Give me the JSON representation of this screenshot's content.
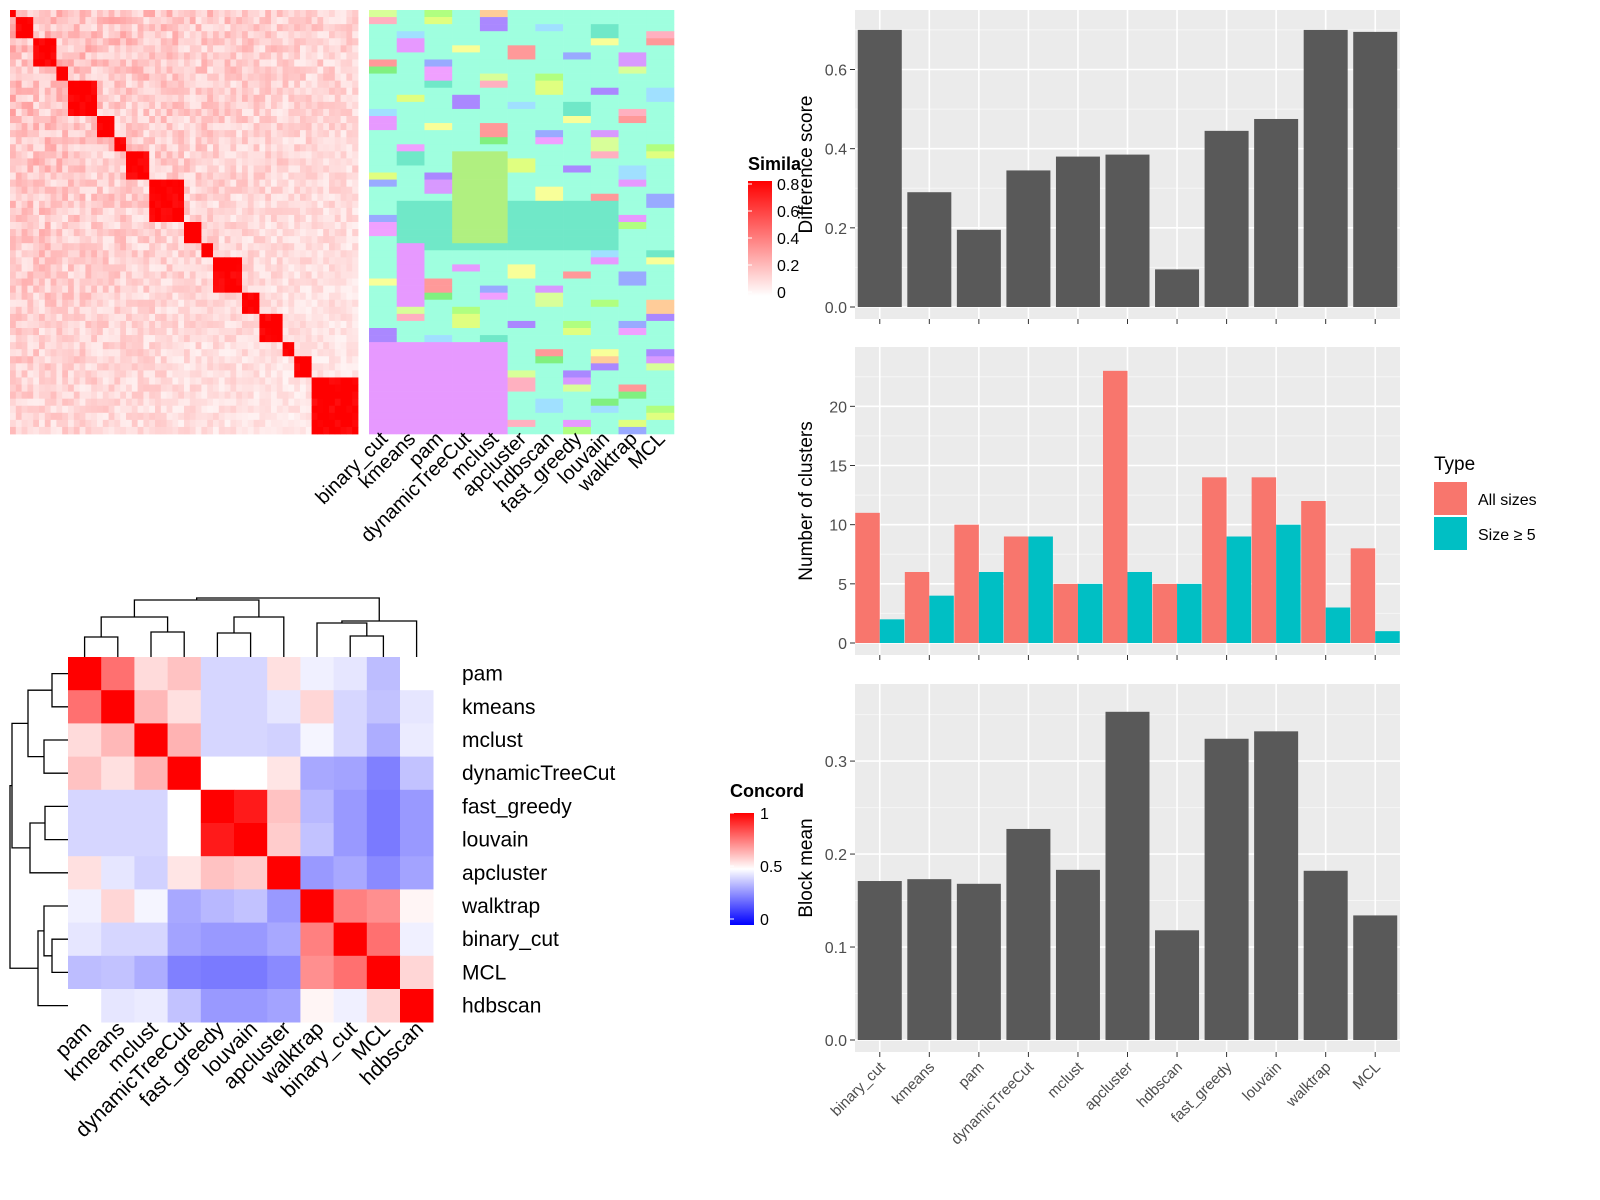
{
  "colors": {
    "panel_bg": "#ebebeb",
    "bar_dark": "#595959",
    "all_sizes": "#f8766d",
    "size5": "#00bfc4",
    "heat_low": "#0000ff",
    "heat_mid": "#ffffff",
    "heat_high": "#ff0000"
  },
  "similarity_legend": {
    "title": "Simila",
    "ticks": [
      "0.8",
      "0.6",
      "0.4",
      "0.2",
      "0"
    ]
  },
  "concordance_legend": {
    "title": "Concord",
    "ticks": [
      "1",
      "0.5",
      "0"
    ]
  },
  "cluster_map_labels": [
    "binary_cut",
    "kmeans",
    "pam",
    "dynamicTreeCut",
    "mclust",
    "apcluster",
    "hdbscan",
    "fast_greedy",
    "louvain",
    "walktrap",
    "MCL"
  ],
  "chart_data": [
    {
      "type": "heatmap",
      "name": "similarity",
      "size": 60,
      "color_range": [
        0,
        0.8
      ],
      "diagonal_value": 0.9
    },
    {
      "type": "heatmap",
      "name": "concordance",
      "rows": [
        "pam",
        "kmeans",
        "mclust",
        "dynamicTreeCut",
        "fast_greedy",
        "louvain",
        "apcluster",
        "walktrap",
        "binary_cut",
        "MCL",
        "hdbscan"
      ],
      "columns": [
        "pam",
        "kmeans",
        "mclust",
        "dynamicTreeCut",
        "fast_greedy",
        "louvain",
        "apcluster",
        "walktrap",
        "binary_cut",
        "MCL",
        "hdbscan"
      ],
      "values": [
        [
          1.0,
          0.78,
          0.57,
          0.62,
          0.42,
          0.42,
          0.56,
          0.47,
          0.45,
          0.37,
          0.5
        ],
        [
          0.78,
          1.0,
          0.64,
          0.56,
          0.42,
          0.42,
          0.45,
          0.58,
          0.42,
          0.38,
          0.45
        ],
        [
          0.57,
          0.64,
          1.0,
          0.65,
          0.42,
          0.42,
          0.41,
          0.48,
          0.42,
          0.34,
          0.46
        ],
        [
          0.62,
          0.56,
          0.65,
          1.0,
          0.5,
          0.5,
          0.55,
          0.33,
          0.32,
          0.25,
          0.38
        ],
        [
          0.42,
          0.42,
          0.42,
          0.5,
          1.0,
          0.95,
          0.62,
          0.36,
          0.3,
          0.24,
          0.3
        ],
        [
          0.42,
          0.42,
          0.42,
          0.5,
          0.95,
          1.0,
          0.6,
          0.38,
          0.3,
          0.24,
          0.3
        ],
        [
          0.56,
          0.45,
          0.41,
          0.55,
          0.62,
          0.6,
          1.0,
          0.3,
          0.33,
          0.27,
          0.32
        ],
        [
          0.47,
          0.58,
          0.48,
          0.33,
          0.36,
          0.38,
          0.3,
          1.0,
          0.75,
          0.72,
          0.52
        ],
        [
          0.45,
          0.42,
          0.42,
          0.32,
          0.3,
          0.3,
          0.33,
          0.75,
          1.0,
          0.78,
          0.47
        ],
        [
          0.37,
          0.38,
          0.34,
          0.25,
          0.24,
          0.24,
          0.27,
          0.72,
          0.78,
          1.0,
          0.58
        ],
        [
          0.5,
          0.45,
          0.46,
          0.38,
          0.3,
          0.3,
          0.32,
          0.52,
          0.47,
          0.58,
          1.0
        ]
      ],
      "color_range": [
        0,
        1
      ]
    },
    {
      "type": "bar",
      "categories": [
        "binary_cut",
        "kmeans",
        "pam",
        "dynamicTreeCut",
        "mclust",
        "apcluster",
        "hdbscan",
        "fast_greedy",
        "louvain",
        "walktrap",
        "MCL"
      ],
      "values": [
        0.7,
        0.29,
        0.195,
        0.345,
        0.38,
        0.385,
        0.095,
        0.445,
        0.475,
        0.7,
        0.695
      ],
      "ylabel": "Difference score",
      "ylim": [
        0,
        0.72
      ],
      "yticks": [
        0.0,
        0.2,
        0.4,
        0.6
      ],
      "ytick_labels": [
        "0.0",
        "0.2",
        "0.4",
        "0.6"
      ]
    },
    {
      "type": "bar",
      "categories": [
        "binary_cut",
        "kmeans",
        "pam",
        "dynamicTreeCut",
        "mclust",
        "apcluster",
        "hdbscan",
        "fast_greedy",
        "louvain",
        "walktrap",
        "MCL"
      ],
      "series": [
        {
          "name": "All sizes",
          "values": [
            11,
            6,
            10,
            9,
            5,
            23,
            5,
            14,
            14,
            12,
            8
          ]
        },
        {
          "name": "Size ≥ 5",
          "values": [
            2,
            4,
            6,
            9,
            5,
            6,
            5,
            9,
            10,
            3,
            1
          ]
        }
      ],
      "ylabel": "Number of clusters",
      "legend_title": "Type",
      "legend_position": "right",
      "ylim": [
        0,
        24
      ],
      "yticks": [
        0,
        5,
        10,
        15,
        20
      ],
      "ytick_labels": [
        "0",
        "5",
        "10",
        "15",
        "20"
      ]
    },
    {
      "type": "bar",
      "categories": [
        "binary_cut",
        "kmeans",
        "pam",
        "dynamicTreeCut",
        "mclust",
        "apcluster",
        "hdbscan",
        "fast_greedy",
        "louvain",
        "walktrap",
        "MCL"
      ],
      "values": [
        0.171,
        0.173,
        0.168,
        0.227,
        0.183,
        0.353,
        0.118,
        0.324,
        0.332,
        0.182,
        0.134
      ],
      "ylabel": "Block mean",
      "ylim": [
        0,
        0.37
      ],
      "yticks": [
        0.0,
        0.1,
        0.2,
        0.3
      ],
      "ytick_labels": [
        "0.0",
        "0.1",
        "0.2",
        "0.3"
      ]
    }
  ]
}
